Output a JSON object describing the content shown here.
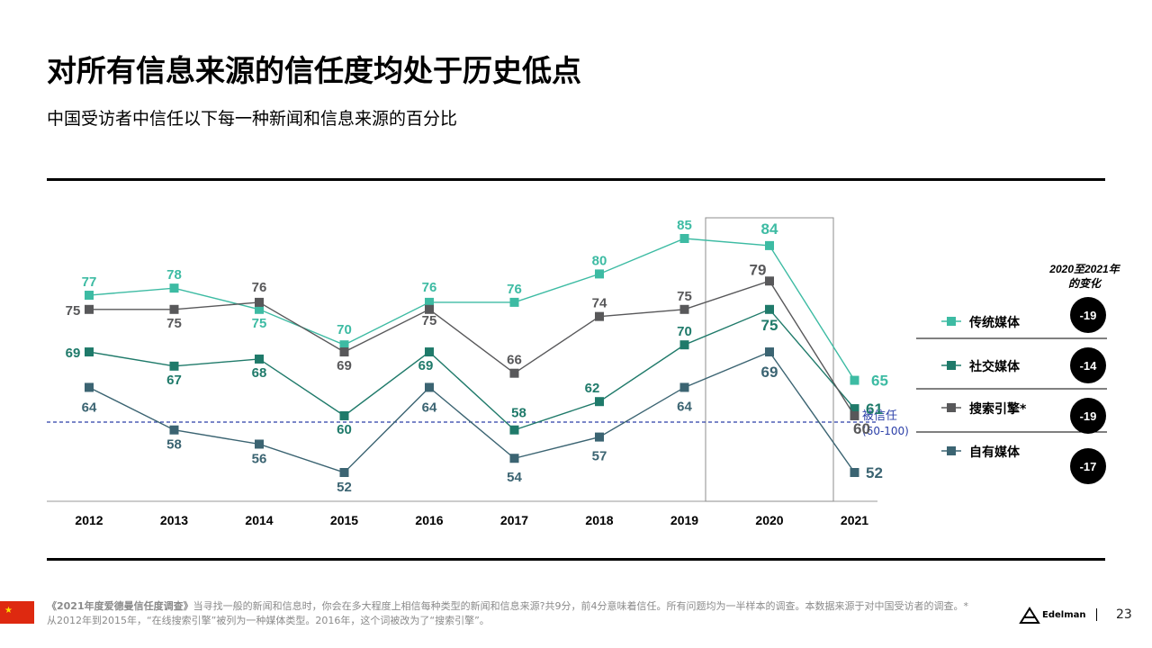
{
  "header": {
    "title": "对所有信息来源的信任度均处于历史低点",
    "subtitle": "中国受访者中信任以下每一种新闻和信息来源的百分比"
  },
  "chart_data": {
    "type": "line",
    "categories": [
      "2012",
      "2013",
      "2014",
      "2015",
      "2016",
      "2017",
      "2018",
      "2019",
      "2020",
      "2021"
    ],
    "ylim": [
      45,
      90
    ],
    "trust_threshold": 60,
    "trust_label": "被信任",
    "trust_range": "(60-100)",
    "highlight_category": "2020",
    "series": [
      {
        "name": "传统媒体",
        "color": "#3dbba3",
        "values": [
          77,
          78,
          75,
          70,
          76,
          76,
          80,
          85,
          84,
          65
        ],
        "change": "-19"
      },
      {
        "name": "社交媒体",
        "color": "#1f7a6a",
        "values": [
          69,
          67,
          68,
          60,
          69,
          58,
          62,
          70,
          75,
          61
        ],
        "change": "-14"
      },
      {
        "name": "搜索引擎*",
        "color": "#58585a",
        "values": [
          75,
          75,
          76,
          69,
          75,
          66,
          74,
          75,
          79,
          60
        ],
        "change": "-19"
      },
      {
        "name": "自有媒体",
        "color": "#3b6472",
        "values": [
          64,
          58,
          56,
          52,
          64,
          54,
          57,
          64,
          69,
          52
        ],
        "change": "-17"
      }
    ],
    "change_title_line1": "2020至2021年",
    "change_title_line2": "的变化"
  },
  "footer": {
    "survey_name": "《2021年度爱德曼信任度调查》",
    "note": "当寻找一般的新闻和信息时，你会在多大程度上相信每种类型的新闻和信息来源?共9分，前4分意味着信任。所有问题均为一半样本的调查。本数据来源于对中国受访者的调查。*从2012年到2015年，“在线搜索引擎”被列为一种媒体类型。2016年，这个词被改为了“搜索引擎”。",
    "brand": "Edelman",
    "page_number": "23"
  },
  "colors": {
    "flag": "#de2910",
    "trust_line": "#2b3fa8"
  }
}
